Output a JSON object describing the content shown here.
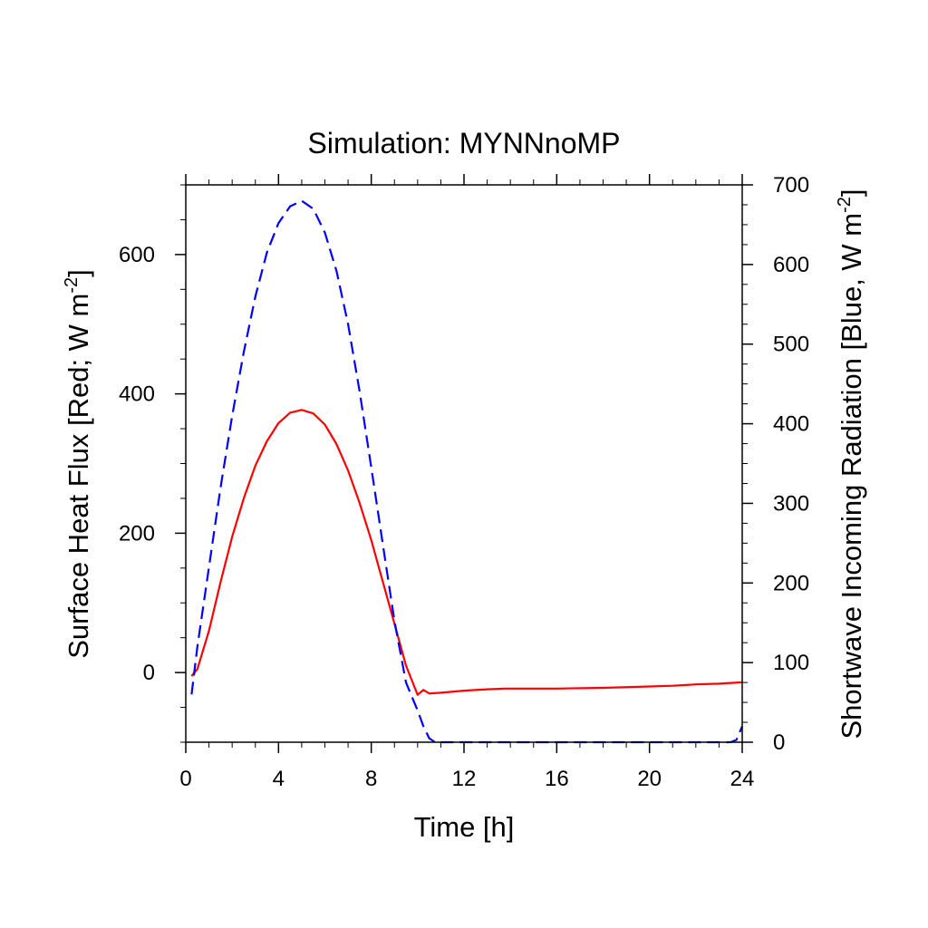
{
  "chart_data": {
    "type": "line",
    "title": "Simulation: MYNNnoMP",
    "xlabel": "Time [h]",
    "ylabel_left": {
      "text": "Surface Heat Flux [Red; W m",
      "sup": "-2",
      "close": "]"
    },
    "ylabel_right": {
      "text": "Shortwave Incoming Radiation [Blue, W m",
      "sup": "-2",
      "close": "]"
    },
    "xlim": [
      0,
      24
    ],
    "ylim_left": [
      -100,
      700
    ],
    "ylim_right": [
      0,
      700
    ],
    "xticks": [
      "0",
      "4",
      "8",
      "12",
      "16",
      "20",
      "24"
    ],
    "yticks_left": [
      "0",
      "200",
      "400",
      "600"
    ],
    "yticks_right": [
      "0",
      "100",
      "200",
      "300",
      "400",
      "500",
      "600",
      "700"
    ],
    "grid": false,
    "series": [
      {
        "axis": "left",
        "color": "#ff0000",
        "dash": "solid",
        "x": [
          0.25,
          0.5,
          1,
          1.5,
          2,
          2.5,
          3,
          3.5,
          4,
          4.5,
          5,
          5.5,
          6,
          6.5,
          7,
          7.5,
          8,
          8.5,
          9,
          9.5,
          10,
          10.25,
          10.5,
          11,
          12,
          13,
          13.75,
          16,
          18,
          20,
          21,
          22,
          23,
          24
        ],
        "y": [
          -5,
          5,
          60,
          130,
          195,
          250,
          297,
          332,
          358,
          373,
          377,
          372,
          356,
          328,
          290,
          243,
          190,
          130,
          70,
          10,
          -32,
          -25,
          -30,
          -29,
          -26,
          -24,
          -23,
          -23,
          -22,
          -20,
          -19,
          -17,
          -16,
          -14
        ]
      },
      {
        "axis": "right",
        "color": "#0000ff",
        "dash": "dashed",
        "x": [
          0.25,
          0.5,
          1,
          1.5,
          2,
          2.5,
          3,
          3.5,
          4,
          4.5,
          5,
          5.5,
          6,
          6.5,
          7,
          7.5,
          8,
          8.5,
          9,
          9.5,
          10,
          10.25,
          10.5,
          10.75,
          12,
          16,
          20,
          23.5,
          23.75,
          24
        ],
        "y": [
          60,
          120,
          220,
          320,
          410,
          490,
          560,
          615,
          652,
          673,
          680,
          670,
          640,
          592,
          525,
          440,
          345,
          248,
          152,
          75,
          40,
          20,
          5,
          0,
          0,
          0,
          0,
          0,
          3,
          20
        ]
      }
    ]
  }
}
